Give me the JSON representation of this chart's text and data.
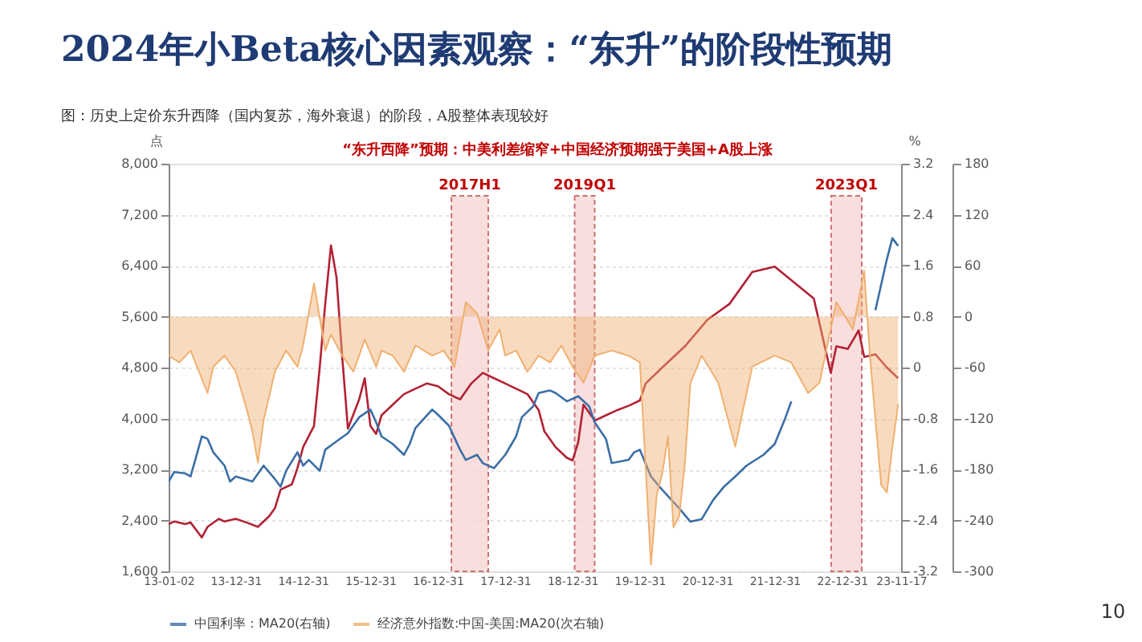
{
  "chart_data": {
    "type": "line",
    "title": "2024年小Beta核心因素观察：“东升”的阶段性预期",
    "subtitle": "图：历史上定价东升西降（国内复苏，海外衰退）的阶段，A股整体表现较好",
    "ylabel": "点",
    "y2label": "%",
    "annotations": [
      "“东升西降”预期：中美利差缩窄+中国经济预期强于美国+A股上涨",
      "10"
    ],
    "xlim": [
      "2013-01-02",
      "2023-11-17"
    ],
    "xticks": [
      {
        "value": "2013-01-02",
        "label": "13-01-02"
      },
      {
        "value": "2013-12-31",
        "label": "13-12-31"
      },
      {
        "value": "2014-12-31",
        "label": "14-12-31"
      },
      {
        "value": "2015-12-31",
        "label": "15-12-31"
      },
      {
        "value": "2016-12-31",
        "label": "16-12-31"
      },
      {
        "value": "2017-12-31",
        "label": "17-12-31"
      },
      {
        "value": "2018-12-31",
        "label": "18-12-31"
      },
      {
        "value": "2019-12-31",
        "label": "19-12-31"
      },
      {
        "value": "2020-12-31",
        "label": "20-12-31"
      },
      {
        "value": "2021-12-31",
        "label": "21-12-31"
      },
      {
        "value": "2022-12-31",
        "label": "22-12-31"
      },
      {
        "value": "2023-11-17",
        "label": "23-11-17"
      }
    ],
    "ylim": [
      1600,
      8000
    ],
    "yticks": [
      {
        "value": 1600,
        "label": "1,600"
      },
      {
        "value": 2400,
        "label": "2,400"
      },
      {
        "value": 3200,
        "label": "3,200"
      },
      {
        "value": 4000,
        "label": "4,000"
      },
      {
        "value": 4800,
        "label": "4,800"
      },
      {
        "value": 5600,
        "label": "5,600"
      },
      {
        "value": 6400,
        "label": "6,400"
      },
      {
        "value": 7200,
        "label": "7,200"
      },
      {
        "value": 8000,
        "label": "8,000"
      }
    ],
    "y2lim": [
      -3.2,
      3.2
    ],
    "y2ticks": [
      -3.2,
      -2.4,
      -1.6,
      -0.8,
      0,
      0.8,
      1.6,
      2.4,
      3.2
    ],
    "y3lim": [
      -300,
      180
    ],
    "y3ticks": [
      -300,
      -240,
      -180,
      -120,
      -60,
      0,
      60,
      120,
      180
    ],
    "grid": "y",
    "legend": "bottom",
    "bands": [
      {
        "axis": "x",
        "from": "2017-03-15",
        "to": "2017-10-01",
        "label": "2017H1",
        "color": "#f8d7d7"
      },
      {
        "axis": "x",
        "from": "2019-01-12",
        "to": "2019-05-01",
        "label": "2019Q1",
        "color": "#f8d7d7"
      },
      {
        "axis": "x",
        "from": "2022-11-03",
        "to": "2023-04-18",
        "label": "2023Q1",
        "color": "#f8d7d7"
      }
    ],
    "series": [
      {
        "color": "#b22234",
        "axis": "y",
        "x": [
          "2013-01-02",
          "2013-02",
          "2013-04",
          "2013-05",
          "2013-07",
          "2013-08",
          "2013-10",
          "2013-11",
          "2014-01",
          "2014-03",
          "2014-05",
          "2014-07",
          "2014-08",
          "2014-09",
          "2014-11",
          "2014-12",
          "2015-01",
          "2015-03",
          "2015-04",
          "2015-05",
          "2015-06",
          "2015-07",
          "2015-08",
          "2015-09",
          "2015-11",
          "2015-12",
          "2016-01",
          "2016-02",
          "2016-03",
          "2016-05",
          "2016-07",
          "2016-09",
          "2016-11",
          "2017-01",
          "2017-03",
          "2017-05",
          "2017-07",
          "2017-09",
          "2017-11",
          "2018-01",
          "2018-03",
          "2018-05",
          "2018-07",
          "2018-08",
          "2018-10",
          "2018-12",
          "2019-01",
          "2019-02",
          "2019-03",
          "2019-05",
          "2019-07",
          "2019-09",
          "2019-11",
          "2020-01",
          "2020-02",
          "2020-05",
          "2020-09",
          "2021-01",
          "2021-05",
          "2021-09",
          "2022-01",
          "2022-08",
          "2022-11",
          "2022-12",
          "2023-02",
          "2023-04",
          "2023-05",
          "2023-07",
          "2023-09",
          "2023-11"
        ],
        "values": [
          2342,
          2383,
          2342,
          2367,
          2133,
          2300,
          2425,
          2383,
          2425,
          2367,
          2300,
          2467,
          2592,
          2883,
          2967,
          3217,
          3550,
          3883,
          4800,
          5800,
          6717,
          6217,
          4967,
          3842,
          4300,
          4633,
          3883,
          3758,
          4050,
          4217,
          4383,
          4467,
          4550,
          4508,
          4383,
          4300,
          4550,
          4717,
          4633,
          4550,
          4467,
          4383,
          4133,
          3800,
          3550,
          3383,
          3342,
          3633,
          4217,
          3967,
          4050,
          4133,
          4200,
          4283,
          4550,
          4800,
          5133,
          5550,
          5800,
          6300,
          6383,
          5883,
          4717,
          5133,
          5092,
          5383,
          4967,
          5008,
          4800,
          4633
        ]
      },
      {
        "name": "中国利率：MA20(右轴)",
        "color": "#3b6ea5",
        "axis": "y2",
        "x": [
          "2013-01-02",
          "2013-02",
          "2013-04",
          "2013-05",
          "2013-07",
          "2013-08",
          "2013-09",
          "2013-11",
          "2013-12",
          "2014-01",
          "2014-04",
          "2014-06",
          "2014-08",
          "2014-09",
          "2014-10",
          "2014-12",
          "2015-01",
          "2015-02",
          "2015-04",
          "2015-05",
          "2015-07",
          "2015-09",
          "2015-11",
          "2016-01",
          "2016-02",
          "2016-03",
          "2016-05",
          "2016-07",
          "2016-08",
          "2016-09",
          "2016-12",
          "2017-01",
          "2017-03",
          "2017-05",
          "2017-06",
          "2017-08",
          "2017-09",
          "2017-11",
          "2018-01",
          "2018-03",
          "2018-04",
          "2018-06",
          "2018-07",
          "2018-09",
          "2018-10",
          "2018-12",
          "2019-02",
          "2019-04",
          "2019-05",
          "2019-07",
          "2019-08",
          "2019-11",
          "2019-12",
          "2020-01",
          "2020-03",
          "2020-05",
          "2020-08",
          "2020-10",
          "2020-12",
          "2021-02",
          "2021-04",
          "2021-06",
          "2021-08",
          "2021-11",
          "2022-01",
          "2022-03",
          "2022-04",
          "2022-06",
          "2023-07",
          "2023-08",
          "2023-09",
          "2023-10",
          "2023-11"
        ],
        "values": [
          -1.79,
          -1.64,
          -1.66,
          -1.71,
          -1.08,
          -1.12,
          -1.33,
          -1.54,
          -1.79,
          -1.71,
          -1.79,
          -1.54,
          -1.75,
          -1.87,
          -1.62,
          -1.33,
          -1.54,
          -1.45,
          -1.62,
          -1.29,
          -1.16,
          -1.03,
          -0.78,
          -0.66,
          -0.86,
          -1.08,
          -1.2,
          -1.37,
          -1.2,
          -0.95,
          -0.66,
          -0.74,
          -0.91,
          -1.29,
          -1.45,
          -1.37,
          -1.5,
          -1.58,
          -1.37,
          -1.08,
          -0.78,
          -0.61,
          -0.4,
          -0.36,
          -0.4,
          -0.53,
          -0.45,
          -0.61,
          -0.86,
          -1.12,
          -1.5,
          -1.45,
          -1.33,
          -1.29,
          -1.71,
          -1.92,
          -2.21,
          -2.42,
          -2.38,
          -2.08,
          -1.87,
          -1.71,
          -1.54,
          -1.37,
          -1.2,
          -0.78,
          -0.53,
          null,
          0.9,
          1.3,
          1.7,
          2.03,
          1.91
        ]
      },
      {
        "name": "经济意外指数:中国-美国:MA20(次右轴)",
        "type": "area",
        "color": "#f0b070",
        "axis": "y3",
        "x": [
          "2013-01-02",
          "2013-03",
          "2013-05",
          "2013-08",
          "2013-09",
          "2013-11",
          "2014-01",
          "2014-03",
          "2014-04",
          "2014-05",
          "2014-06",
          "2014-08",
          "2014-10",
          "2014-12",
          "2015-01",
          "2015-03",
          "2015-05",
          "2015-06",
          "2015-08",
          "2015-10",
          "2015-12",
          "2016-02",
          "2016-03",
          "2016-05",
          "2016-07",
          "2016-09",
          "2016-12",
          "2017-02",
          "2017-04",
          "2017-06",
          "2017-08",
          "2017-10",
          "2017-12",
          "2018-01",
          "2018-03",
          "2018-05",
          "2018-07",
          "2018-09",
          "2018-11",
          "2019-01",
          "2019-03",
          "2019-05",
          "2019-08",
          "2019-11",
          "2020-01",
          "2020-03",
          "2020-04",
          "2020-05",
          "2020-06",
          "2020-07",
          "2020-08",
          "2020-09",
          "2020-10",
          "2020-12",
          "2021-03",
          "2021-06",
          "2021-09",
          "2022-01",
          "2022-04",
          "2022-07",
          "2022-09",
          "2022-12",
          "2023-03",
          "2023-05",
          "2023-06",
          "2023-08",
          "2023-09",
          "2023-10",
          "2023-11"
        ],
        "values": [
          -46,
          -54,
          -40,
          -90,
          -59,
          -46,
          -65,
          -109,
          -135,
          -172,
          -122,
          -65,
          -40,
          -59,
          -34,
          39,
          -40,
          -21,
          -46,
          -65,
          -27,
          -59,
          -40,
          -46,
          -65,
          -34,
          -46,
          -40,
          -59,
          17,
          4,
          -40,
          -15,
          -46,
          -40,
          -65,
          -46,
          -54,
          -34,
          -59,
          -78,
          -46,
          -40,
          -46,
          -54,
          -292,
          -210,
          -185,
          -141,
          -248,
          -235,
          -172,
          -78,
          -46,
          -78,
          -153,
          -59,
          -46,
          -54,
          -90,
          -78,
          17,
          -15,
          54,
          -46,
          -198,
          -207,
          -153,
          -103
        ]
      }
    ]
  }
}
